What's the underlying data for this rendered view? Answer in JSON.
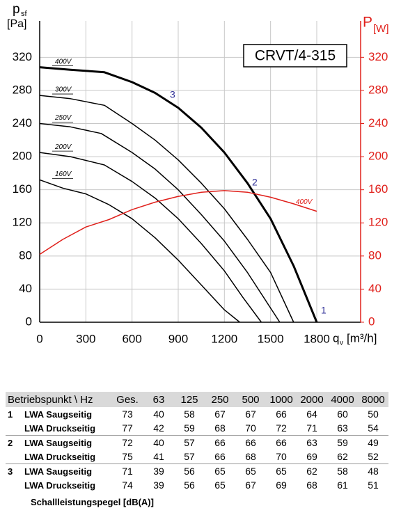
{
  "chart_data": {
    "type": "line",
    "title": "CRVT/4-315",
    "y_label": "p",
    "y_label_sub": "sf",
    "y_unit": "[Pa]",
    "y2_label": "P",
    "y2_unit": "[W]",
    "x_label": "q",
    "x_label_sub": "v",
    "x_unit": "[m³/h]",
    "xlim": [
      0,
      2085
    ],
    "xticks": [
      0,
      300,
      600,
      900,
      1200,
      1500,
      1800
    ],
    "ylim": [
      0,
      364
    ],
    "yticks": [
      0,
      40,
      80,
      120,
      160,
      200,
      240,
      280,
      320
    ],
    "y2lim": [
      0,
      364
    ],
    "y2ticks": [
      0,
      40,
      80,
      120,
      160,
      200,
      240,
      280,
      320
    ],
    "y2_color": "#e0201b",
    "grid": true,
    "annotations": [
      "1",
      "2",
      "3"
    ],
    "series": [
      {
        "name": "400V",
        "color": "#000000",
        "width": 3,
        "x": [
          0,
          200,
          420,
          600,
          750,
          900,
          1050,
          1200,
          1350,
          1500,
          1650,
          1800
        ],
        "values": [
          308,
          305,
          302,
          290,
          277,
          259,
          235,
          205,
          168,
          125,
          68,
          0
        ]
      },
      {
        "name": "300V",
        "color": "#000000",
        "width": 1.5,
        "x": [
          0,
          200,
          420,
          600,
          750,
          900,
          1050,
          1200,
          1350,
          1500,
          1650
        ],
        "values": [
          274,
          270,
          262,
          240,
          220,
          196,
          168,
          137,
          100,
          60,
          0
        ]
      },
      {
        "name": "250V",
        "color": "#000000",
        "width": 1.5,
        "x": [
          0,
          200,
          400,
          600,
          750,
          900,
          1050,
          1200,
          1350,
          1560
        ],
        "values": [
          240,
          236,
          228,
          205,
          185,
          160,
          130,
          98,
          60,
          0
        ]
      },
      {
        "name": "200V",
        "color": "#000000",
        "width": 1.5,
        "x": [
          0,
          200,
          420,
          600,
          750,
          900,
          1050,
          1200,
          1320,
          1440
        ],
        "values": [
          205,
          200,
          190,
          170,
          150,
          125,
          95,
          62,
          30,
          0
        ]
      },
      {
        "name": "160V",
        "color": "#000000",
        "width": 1.5,
        "x": [
          0,
          150,
          300,
          450,
          600,
          750,
          900,
          1050,
          1200,
          1300
        ],
        "values": [
          172,
          162,
          155,
          142,
          125,
          102,
          75,
          45,
          15,
          0
        ]
      },
      {
        "name": "400V",
        "color": "#e0201b",
        "width": 1.5,
        "axis": "y2",
        "x": [
          0,
          150,
          300,
          450,
          600,
          750,
          900,
          1050,
          1200,
          1350,
          1500,
          1650,
          1800
        ],
        "values": [
          82,
          100,
          115,
          124,
          136,
          145,
          152,
          157,
          159,
          157,
          151,
          143,
          134
        ]
      }
    ]
  },
  "table": {
    "header": [
      "Betriebspunkt \\ Hz",
      "Ges.",
      "63",
      "125",
      "250",
      "500",
      "1000",
      "2000",
      "4000",
      "8000"
    ],
    "rows": [
      {
        "point": "1",
        "entries": [
          {
            "label": "LWA Saugseitig",
            "values": [
              73,
              40,
              58,
              67,
              67,
              66,
              64,
              60,
              50
            ]
          },
          {
            "label": "LWA Druckseitig",
            "values": [
              77,
              42,
              59,
              68,
              70,
              72,
              71,
              63,
              54
            ]
          }
        ]
      },
      {
        "point": "2",
        "entries": [
          {
            "label": "LWA Saugseitig",
            "values": [
              72,
              40,
              57,
              66,
              66,
              66,
              63,
              59,
              49
            ]
          },
          {
            "label": "LWA Druckseitig",
            "values": [
              75,
              41,
              57,
              66,
              68,
              70,
              69,
              62,
              52
            ]
          }
        ]
      },
      {
        "point": "3",
        "entries": [
          {
            "label": "LWA Saugseitig",
            "values": [
              71,
              39,
              56,
              65,
              65,
              65,
              62,
              58,
              48
            ]
          },
          {
            "label": "LWA Druckseitig",
            "values": [
              74,
              39,
              56,
              65,
              67,
              69,
              68,
              61,
              51
            ]
          }
        ]
      }
    ],
    "footnote": "Schallleistungspegel [dB(A)]"
  }
}
